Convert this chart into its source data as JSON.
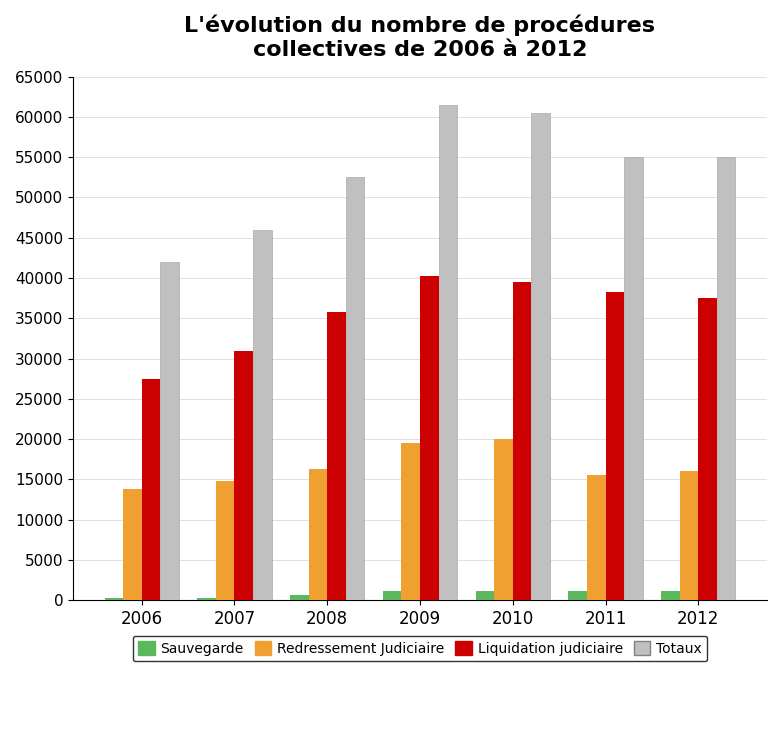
{
  "title": "L'évolution du nombre de procédures\ncollectives de 2006 à 2012",
  "years": [
    2006,
    2007,
    2008,
    2009,
    2010,
    2011,
    2012
  ],
  "sauvegarde": [
    300,
    300,
    700,
    1200,
    1200,
    1100,
    1200
  ],
  "redressement_judiciaire": [
    13800,
    14800,
    16300,
    19500,
    20000,
    15500,
    16000
  ],
  "liquidation_judiciaire": [
    27500,
    31000,
    35800,
    40300,
    39500,
    38300,
    37500
  ],
  "totaux": [
    42000,
    46000,
    52500,
    61500,
    60500,
    55000,
    55000
  ],
  "colors": {
    "sauvegarde": "#5cb85c",
    "redressement": "#f0a030",
    "liquidation": "#cc0000",
    "totaux": "#c0c0c0"
  },
  "ylim": [
    0,
    65000
  ],
  "yticks": [
    0,
    5000,
    10000,
    15000,
    20000,
    25000,
    30000,
    35000,
    40000,
    45000,
    50000,
    55000,
    60000,
    65000
  ],
  "legend_labels": [
    "Sauvegarde",
    "Redressement Judiciaire",
    "Liquidation judiciaire",
    "Totaux"
  ],
  "background_color": "#ffffff",
  "border_color": "#000000"
}
